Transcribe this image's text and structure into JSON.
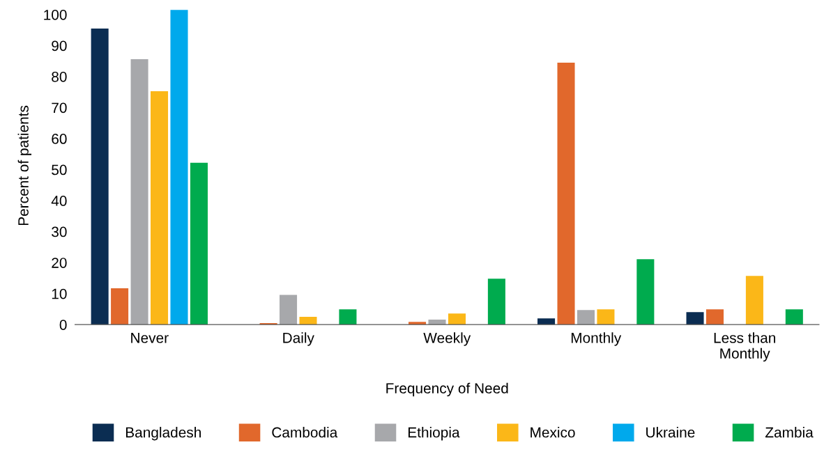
{
  "chart_data": {
    "type": "bar",
    "xlabel": "Frequency of Need",
    "ylabel": "Percent of patients",
    "categories": [
      "Never",
      "Daily",
      "Weekly",
      "Monthly",
      "Less than\nMonthly"
    ],
    "series": [
      {
        "name": "Bangladesh",
        "color": "#0b2d52",
        "values": [
          95.5,
          0,
          0,
          2,
          4
        ]
      },
      {
        "name": "Cambodia",
        "color": "#e1682c",
        "values": [
          11.7,
          0.5,
          0.9,
          84.5,
          4.9
        ]
      },
      {
        "name": "Ethiopia",
        "color": "#a7a8ab",
        "values": [
          85.6,
          9.6,
          1.6,
          4.7,
          0
        ]
      },
      {
        "name": "Mexico",
        "color": "#fbb718",
        "values": [
          75.3,
          2.5,
          3.6,
          4.9,
          15.7
        ]
      },
      {
        "name": "Ukraine",
        "color": "#00a9ec",
        "values": [
          101.5,
          0,
          0,
          0,
          0
        ]
      },
      {
        "name": "Zambia",
        "color": "#00ab4e",
        "values": [
          52.2,
          4.9,
          14.8,
          21.1,
          4.9
        ]
      }
    ],
    "ylim": [
      0,
      102.5
    ],
    "yticks": [
      0,
      10,
      20,
      30,
      40,
      50,
      60,
      70,
      80,
      90,
      100
    ],
    "grid": false,
    "legend": "bottom"
  }
}
